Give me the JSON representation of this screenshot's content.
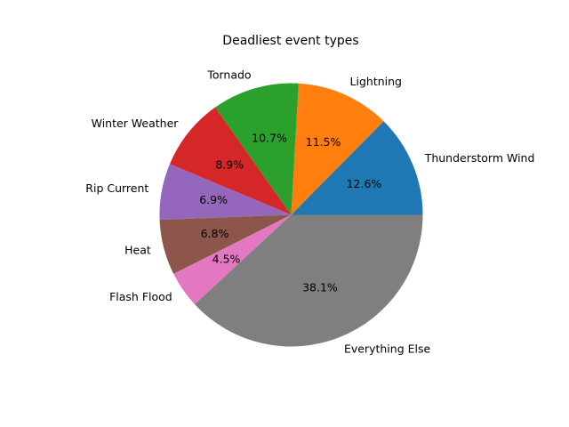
{
  "chart_data": {
    "type": "pie",
    "title": "Deadliest event types",
    "categories": [
      "Thunderstorm Wind",
      "Lightning",
      "Tornado",
      "Winter Weather",
      "Rip Current",
      "Heat",
      "Flash Flood",
      "Everything Else"
    ],
    "values": [
      12.6,
      11.5,
      10.7,
      8.9,
      6.9,
      6.8,
      4.5,
      38.1
    ],
    "value_labels": [
      "12.6%",
      "11.5%",
      "10.7%",
      "8.9%",
      "6.9%",
      "6.8%",
      "4.5%",
      "38.1%"
    ],
    "colors": [
      "#1f77b4",
      "#ff7f0e",
      "#2ca02c",
      "#d62728",
      "#9467bd",
      "#8c564b",
      "#e377c2",
      "#7f7f7f"
    ],
    "start_angle_deg": 0,
    "direction": "counterclockwise",
    "legend": "none"
  }
}
